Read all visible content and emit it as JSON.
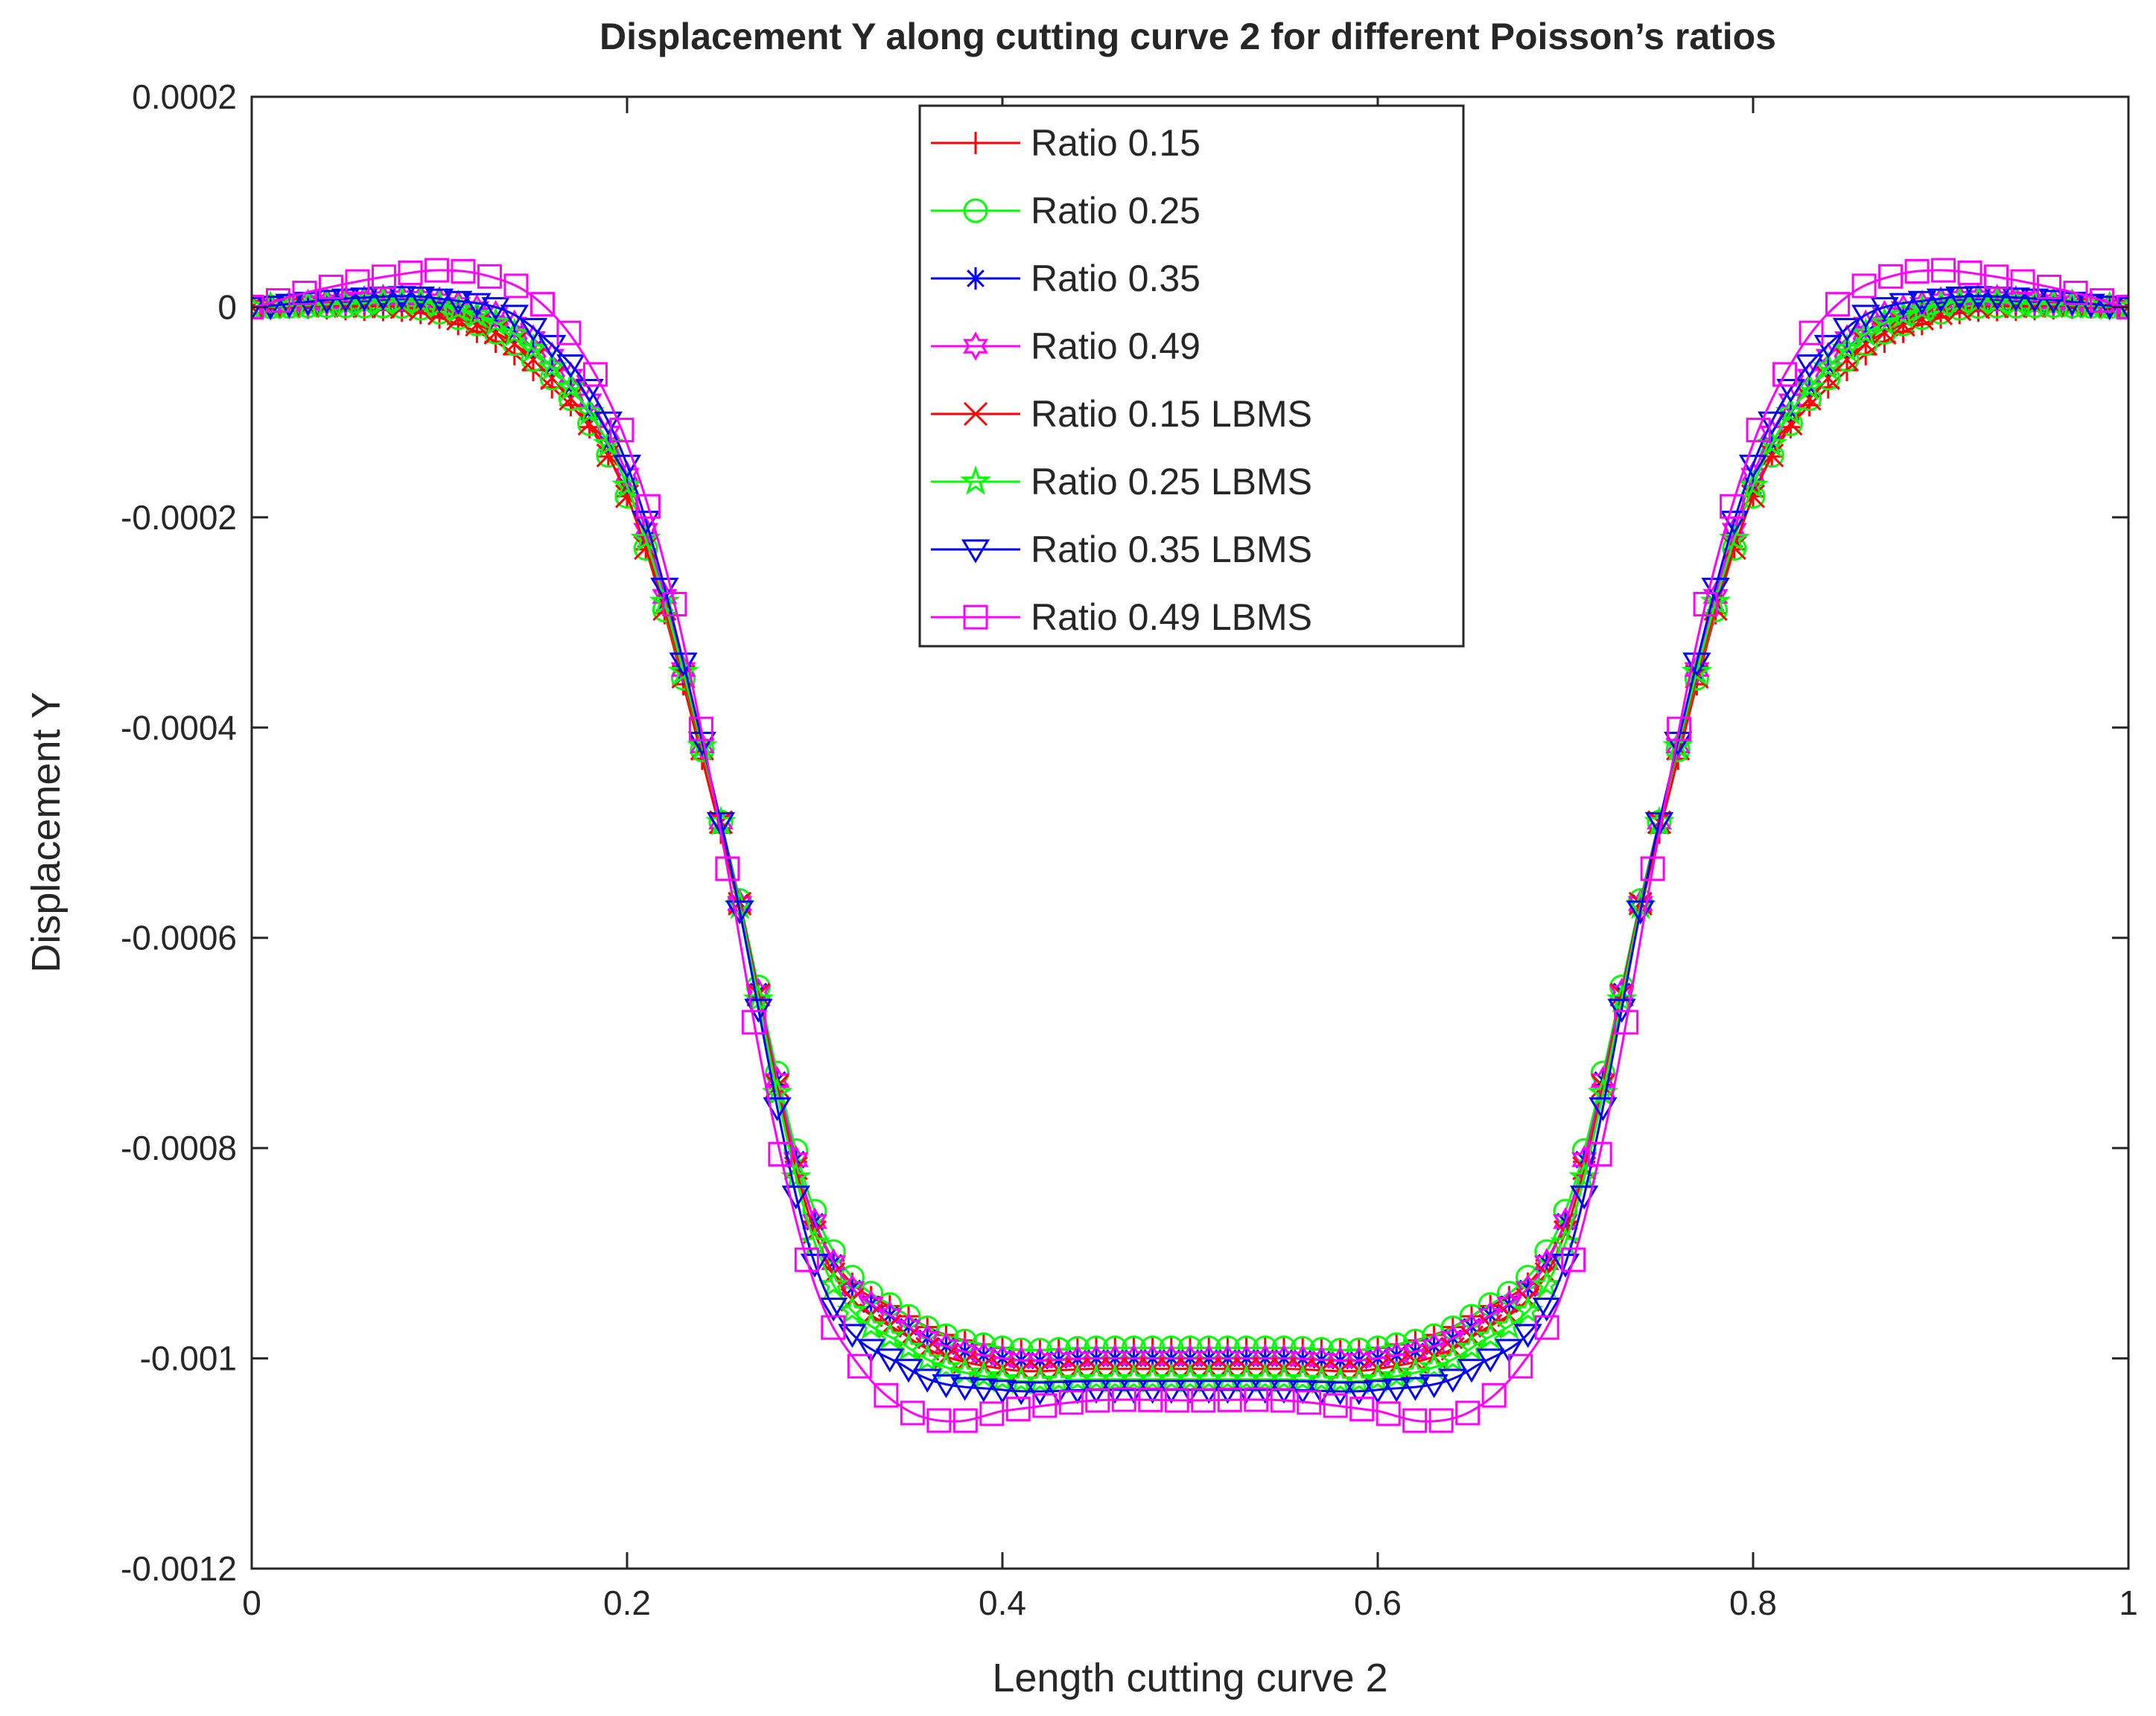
{
  "chart_data": {
    "type": "line",
    "title": "Displacement Y along cutting curve 2 for different Poisson’s ratios",
    "xlabel": "Length cutting curve 2",
    "ylabel": "Displacement Y",
    "xlim": [
      0,
      1
    ],
    "ylim": [
      -0.0012,
      0.0002
    ],
    "x_ticks": [
      0,
      0.2,
      0.4,
      0.6,
      0.8,
      1
    ],
    "x_tick_labels": [
      "0",
      "0.2",
      "0.4",
      "0.6",
      "0.8",
      "1"
    ],
    "y_ticks": [
      0.0002,
      0,
      -0.0002,
      -0.0004,
      -0.0006,
      -0.0008,
      -0.001,
      -0.0012
    ],
    "y_tick_labels": [
      "0.0002",
      "0",
      "-0.0002",
      "-0.0004",
      "-0.0006",
      "-0.0008",
      "-0.001",
      "-0.0012"
    ],
    "grid": false,
    "legend_position": "top-center",
    "series": [
      {
        "name": "Ratio 0.15",
        "color": "#ff0000",
        "marker": "plus",
        "x": [
          0,
          0.05,
          0.1,
          0.15,
          0.2,
          0.25,
          0.3,
          0.35,
          0.4,
          0.45,
          0.5,
          0.55,
          0.6,
          0.65,
          0.7,
          0.75,
          0.8,
          0.85,
          0.9,
          0.95,
          1
        ],
        "values": [
          0,
          -2e-06,
          -1e-05,
          -6e-05,
          -0.00018,
          -0.0005,
          -0.00087,
          -0.00096,
          -0.00099,
          -0.00099,
          -0.00099,
          -0.00099,
          -0.00099,
          -0.00096,
          -0.00087,
          -0.0005,
          -0.00018,
          -6e-05,
          -1e-05,
          -2e-06,
          0
        ]
      },
      {
        "name": "Ratio 0.25",
        "color": "#00ff00",
        "marker": "circle",
        "x": [
          0,
          0.05,
          0.1,
          0.15,
          0.2,
          0.25,
          0.3,
          0.35,
          0.4,
          0.45,
          0.5,
          0.55,
          0.6,
          0.65,
          0.7,
          0.75,
          0.8,
          0.85,
          0.9,
          0.95,
          1
        ],
        "values": [
          0,
          1e-06,
          -5e-06,
          -5e-05,
          -0.00018,
          -0.00049,
          -0.00086,
          -0.00096,
          -0.00099,
          -0.00099,
          -0.00099,
          -0.00099,
          -0.00099,
          -0.00096,
          -0.00086,
          -0.00049,
          -0.00018,
          -5e-05,
          -5e-06,
          1e-06,
          0
        ]
      },
      {
        "name": "Ratio 0.35",
        "color": "#0000ff",
        "marker": "asterisk",
        "x": [
          0,
          0.05,
          0.1,
          0.15,
          0.2,
          0.25,
          0.3,
          0.35,
          0.4,
          0.45,
          0.5,
          0.55,
          0.6,
          0.65,
          0.7,
          0.75,
          0.8,
          0.85,
          0.9,
          0.95,
          1
        ],
        "values": [
          0,
          3e-06,
          2e-06,
          -4e-05,
          -0.00017,
          -0.00049,
          -0.00087,
          -0.00097,
          -0.001,
          -0.001,
          -0.001,
          -0.001,
          -0.001,
          -0.00097,
          -0.00087,
          -0.00049,
          -0.00017,
          -4e-05,
          2e-06,
          3e-06,
          0
        ]
      },
      {
        "name": "Ratio 0.49",
        "color": "#ff00ff",
        "marker": "hexagram",
        "x": [
          0,
          0.05,
          0.1,
          0.15,
          0.2,
          0.25,
          0.3,
          0.35,
          0.4,
          0.45,
          0.5,
          0.55,
          0.6,
          0.65,
          0.7,
          0.75,
          0.8,
          0.85,
          0.9,
          0.95,
          1
        ],
        "values": [
          0,
          6e-06,
          6e-06,
          -3e-05,
          -0.00016,
          -0.00049,
          -0.00087,
          -0.00097,
          -0.001,
          -0.001,
          -0.001,
          -0.001,
          -0.001,
          -0.00097,
          -0.00087,
          -0.00049,
          -0.00016,
          -3e-05,
          6e-06,
          6e-06,
          0
        ]
      },
      {
        "name": "Ratio 0.15 LBMS",
        "color": "#ff0000",
        "marker": "x",
        "x": [
          0,
          0.05,
          0.1,
          0.15,
          0.2,
          0.25,
          0.3,
          0.35,
          0.4,
          0.45,
          0.5,
          0.55,
          0.6,
          0.65,
          0.7,
          0.75,
          0.8,
          0.85,
          0.9,
          0.95,
          1
        ],
        "values": [
          0,
          1e-06,
          -6e-06,
          -5e-05,
          -0.00018,
          -0.00049,
          -0.00088,
          -0.00098,
          -0.00101,
          -0.00101,
          -0.00101,
          -0.00101,
          -0.00101,
          -0.00098,
          -0.00088,
          -0.00049,
          -0.00018,
          -5e-05,
          -6e-06,
          1e-06,
          0
        ]
      },
      {
        "name": "Ratio 0.25 LBMS",
        "color": "#00ff00",
        "marker": "pentagram",
        "x": [
          0,
          0.05,
          0.1,
          0.15,
          0.2,
          0.25,
          0.3,
          0.35,
          0.4,
          0.45,
          0.5,
          0.55,
          0.6,
          0.65,
          0.7,
          0.75,
          0.8,
          0.85,
          0.9,
          0.95,
          1
        ],
        "values": [
          0,
          3e-06,
          2e-06,
          -4e-05,
          -0.00017,
          -0.00049,
          -0.00089,
          -0.00099,
          -0.00102,
          -0.00102,
          -0.00102,
          -0.00102,
          -0.00102,
          -0.00099,
          -0.00089,
          -0.00049,
          -0.00017,
          -4e-05,
          2e-06,
          3e-06,
          0
        ]
      },
      {
        "name": "Ratio 0.35 LBMS",
        "color": "#0000ff",
        "marker": "triangle-down",
        "x": [
          0,
          0.05,
          0.1,
          0.15,
          0.2,
          0.25,
          0.3,
          0.35,
          0.4,
          0.45,
          0.5,
          0.55,
          0.6,
          0.65,
          0.7,
          0.75,
          0.8,
          0.85,
          0.9,
          0.95,
          1
        ],
        "values": [
          0,
          8e-06,
          8e-06,
          -2e-05,
          -0.00015,
          -0.00049,
          -0.00091,
          -0.00101,
          -0.00103,
          -0.00103,
          -0.00103,
          -0.00103,
          -0.00103,
          -0.00101,
          -0.00091,
          -0.00049,
          -0.00015,
          -2e-05,
          8e-06,
          8e-06,
          0
        ]
      },
      {
        "name": "Ratio 0.49 LBMS",
        "color": "#ff00ff",
        "marker": "square",
        "x": [
          0,
          0.025,
          0.05,
          0.075,
          0.1,
          0.125,
          0.15,
          0.175,
          0.2,
          0.225,
          0.25,
          0.275,
          0.3,
          0.325,
          0.35,
          0.375,
          0.4,
          0.45,
          0.5,
          0.55,
          0.6,
          0.625,
          0.65,
          0.675,
          0.7,
          0.725,
          0.75,
          0.775,
          0.8,
          0.825,
          0.85,
          0.875,
          0.9,
          0.925,
          0.95,
          0.975,
          1
        ],
        "values": [
          0,
          1.2e-05,
          2.2e-05,
          3e-05,
          3.5e-05,
          3e-05,
          1e-05,
          -4e-05,
          -0.00013,
          -0.00028,
          -0.0005,
          -0.00075,
          -0.00093,
          -0.00101,
          -0.00105,
          -0.00106,
          -0.00105,
          -0.00104,
          -0.00104,
          -0.00104,
          -0.00105,
          -0.00106,
          -0.00105,
          -0.00101,
          -0.00093,
          -0.00075,
          -0.0005,
          -0.00028,
          -0.00013,
          -4e-05,
          1e-05,
          3e-05,
          3.5e-05,
          3e-05,
          2.2e-05,
          1.2e-05,
          0
        ]
      }
    ]
  }
}
